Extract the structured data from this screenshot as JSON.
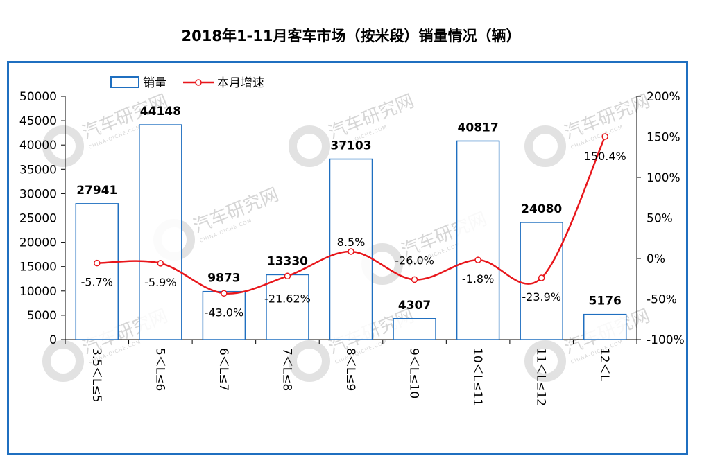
{
  "title": "2018年1-11月客车市场（按米段）销量情况（辆）",
  "watermark": {
    "brand": "汽车研究网",
    "sub": "CHINA-QICHE.COM"
  },
  "colors": {
    "bar_stroke": "#1f6fc0",
    "line": "#e8161b",
    "frame": "#1f6fc0",
    "axis": "#000000"
  },
  "chart_data": {
    "type": "bar",
    "categories": [
      "3.5＜L≤5",
      "5＜L≤6",
      "6＜L≤7",
      "7＜L≤8",
      "8＜L≤9",
      "9＜L≤10",
      "10＜L≤11",
      "11＜L≤12",
      "12＜L"
    ],
    "series": [
      {
        "name": "销量",
        "type": "bar",
        "axis": "left",
        "values": [
          27941,
          44148,
          9873,
          13330,
          37103,
          4307,
          40817,
          24080,
          5176
        ],
        "labels": [
          "27941",
          "44148",
          "9873",
          "13330",
          "37103",
          "4307",
          "40817",
          "24080",
          "5176"
        ]
      },
      {
        "name": "本月增速",
        "type": "line",
        "axis": "right",
        "values": [
          -5.7,
          -5.9,
          -43.0,
          -21.62,
          8.5,
          -26.0,
          -1.8,
          -23.9,
          150.4
        ],
        "labels": [
          "-5.7%",
          "-5.9%",
          "-43.0%",
          "-21.62%",
          "8.5%",
          "-26.0%",
          "-1.8%",
          "-23.9%",
          "150.4%"
        ]
      }
    ],
    "y_left": {
      "min": 0,
      "max": 50000,
      "step": 5000,
      "ticks": [
        "0",
        "5000",
        "10000",
        "15000",
        "20000",
        "25000",
        "30000",
        "35000",
        "40000",
        "45000",
        "50000"
      ]
    },
    "y_right": {
      "min": -100,
      "max": 200,
      "step": 50,
      "ticks": [
        "-100%",
        "-50%",
        "0%",
        "50%",
        "100%",
        "150%",
        "200%"
      ]
    },
    "legend": {
      "position": "top-left",
      "entries": [
        "销量",
        "本月增速"
      ]
    },
    "grid": false
  }
}
